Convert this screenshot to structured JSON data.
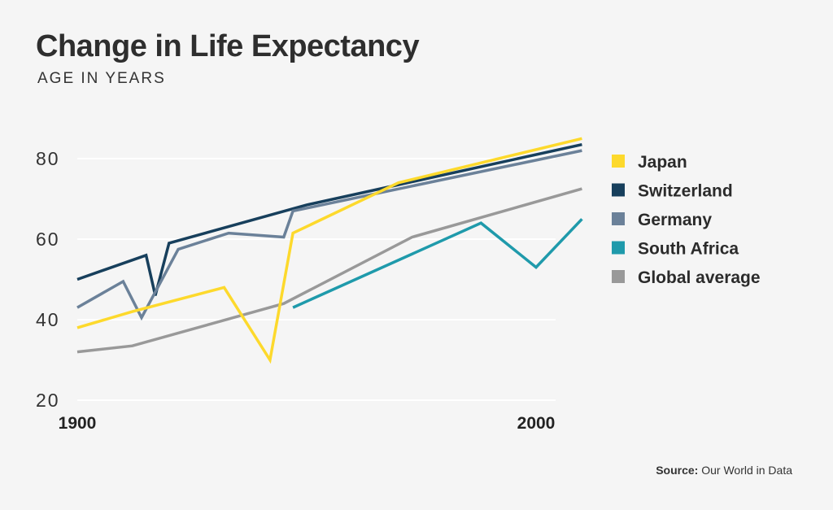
{
  "chart_data": {
    "type": "line",
    "title": "Change in Life Expectancy",
    "subtitle": "AGE IN YEARS",
    "xlabel": "",
    "ylabel": "",
    "xlim": [
      1900,
      2010
    ],
    "ylim": [
      20,
      80
    ],
    "x_ticks": [
      1900,
      2000
    ],
    "y_ticks": [
      20,
      40,
      60,
      80
    ],
    "grid": "horizontal",
    "legend_position": "right",
    "series": [
      {
        "name": "Japan",
        "color": "#fdd92c",
        "points": [
          [
            1900,
            38
          ],
          [
            1912,
            42
          ],
          [
            1932,
            48
          ],
          [
            1942,
            30
          ],
          [
            1947,
            61.5
          ],
          [
            1970,
            74
          ],
          [
            2010,
            85
          ]
        ]
      },
      {
        "name": "Switzerland",
        "color": "#173f5c",
        "points": [
          [
            1900,
            50
          ],
          [
            1915,
            56
          ],
          [
            1917,
            46
          ],
          [
            1920,
            59
          ],
          [
            1950,
            68.5
          ],
          [
            2010,
            83.5
          ]
        ]
      },
      {
        "name": "Germany",
        "color": "#6b8199",
        "points": [
          [
            1900,
            43
          ],
          [
            1910,
            49.5
          ],
          [
            1914,
            40.5
          ],
          [
            1922,
            57.5
          ],
          [
            1933,
            61.5
          ],
          [
            1945,
            60.5
          ],
          [
            1947,
            67
          ],
          [
            2010,
            82
          ]
        ]
      },
      {
        "name": "South Africa",
        "color": "#1f9aab",
        "points": [
          [
            1947,
            43
          ],
          [
            1988,
            64
          ],
          [
            2000,
            53
          ],
          [
            2010,
            65
          ]
        ]
      },
      {
        "name": "Global average",
        "color": "#999999",
        "points": [
          [
            1900,
            32
          ],
          [
            1912,
            33.5
          ],
          [
            1945,
            44
          ],
          [
            1973,
            60.5
          ],
          [
            2010,
            72.5
          ]
        ]
      }
    ]
  },
  "source": {
    "label": "Source:",
    "text": "Our World in Data"
  }
}
